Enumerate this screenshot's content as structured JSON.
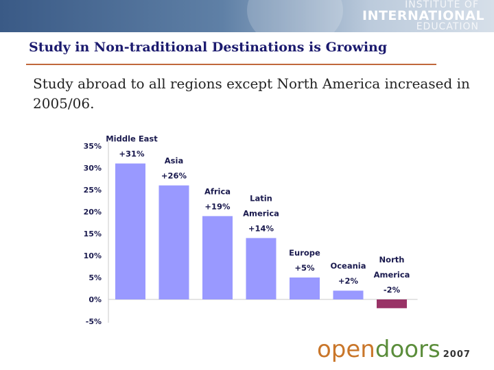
{
  "header": {
    "logo_line1": "INSTITUTE OF",
    "logo_line2": "INTERNATIONAL",
    "logo_line3": "EDUCATION"
  },
  "slide": {
    "title": "Study in Non-traditional Destinations is Growing",
    "subtitle": "Study abroad to all regions except North America increased in 2005/06."
  },
  "chart_data": {
    "type": "bar",
    "title": "",
    "xlabel": "",
    "ylabel": "",
    "categories": [
      [
        "Middle East"
      ],
      [
        "Asia"
      ],
      [
        "Africa"
      ],
      [
        "Latin",
        "America"
      ],
      [
        "Europe"
      ],
      [
        "Oceania"
      ],
      [
        "North",
        "America"
      ]
    ],
    "values": [
      31,
      26,
      19,
      14,
      5,
      2,
      -2
    ],
    "data_labels": [
      "+31%",
      "+26%",
      "+19%",
      "+14%",
      "+5%",
      "+2%",
      "-2%"
    ],
    "ylim": [
      -5,
      35
    ],
    "yticks": [
      -5,
      0,
      5,
      10,
      15,
      20,
      25,
      30,
      35
    ],
    "ytick_labels": [
      "-5%",
      "0%",
      "5%",
      "10%",
      "15%",
      "20%",
      "25%",
      "30%",
      "35%"
    ],
    "grid": false,
    "legend": "none",
    "colors": {
      "positive": "#9999ff",
      "negative": "#993366"
    }
  },
  "footer": {
    "brand_part1": "open",
    "brand_part2": "doors",
    "year": "2007"
  }
}
